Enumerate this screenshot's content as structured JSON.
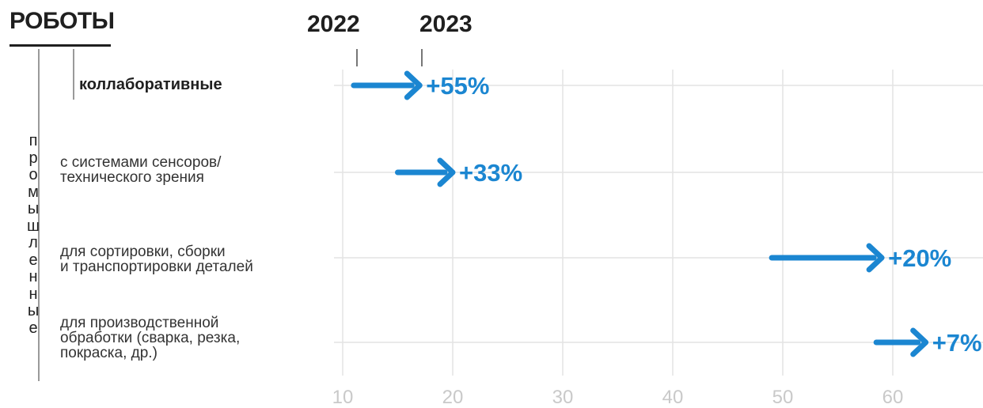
{
  "header": {
    "title": "РОБОТЫ",
    "year_start": "2022",
    "year_end": "2023"
  },
  "group_label_letters": [
    "п",
    "р",
    "о",
    "м",
    "ы",
    "ш",
    "л",
    "е",
    "н",
    "н",
    "ы",
    "е"
  ],
  "categories": [
    {
      "lines": [
        "коллаборативные"
      ]
    },
    {
      "lines": [
        "с системами сенсоров/",
        "технического зрения"
      ]
    },
    {
      "lines": [
        "для сортировки, сборки",
        "и транспортировки деталей"
      ]
    },
    {
      "lines": [
        "для производственной",
        "обработки (сварка, резка,",
        "покраска, др.)"
      ]
    }
  ],
  "colors": {
    "arrow": "#1b86d1",
    "grid": "#e3e3e3",
    "tick_text": "#c9c9c9",
    "text": "#1f1f1f"
  },
  "chart_data": {
    "type": "arrow",
    "categories": [
      "коллаборативные",
      "с системами сенсоров/ технического зрения",
      "для сортировки, сборки и транспортировки деталей",
      "для производственной обработки (сварка, резка, покраска, др.)"
    ],
    "series": [
      {
        "name": "2022",
        "values": [
          11,
          15,
          49,
          58.5
        ]
      },
      {
        "name": "2023",
        "values": [
          17,
          20,
          59,
          63
        ]
      }
    ],
    "labels": [
      "+55%",
      "+33%",
      "+20%",
      "+7%"
    ],
    "xticks": [
      10,
      20,
      30,
      40,
      50,
      60
    ],
    "xlim": [
      9.5,
      67
    ],
    "grid": true
  }
}
